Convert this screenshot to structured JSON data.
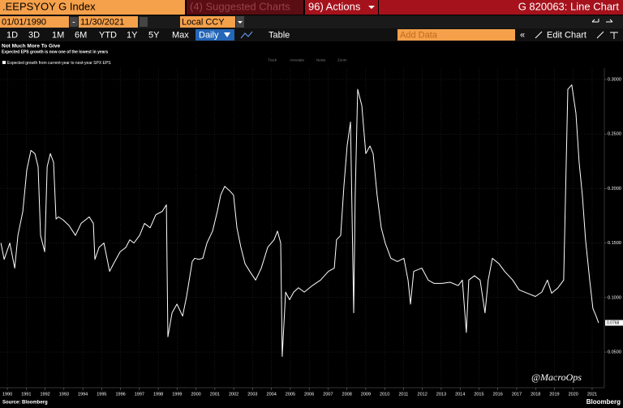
{
  "ui": {
    "ticker": ".EEPSYOY G Index",
    "suggested": "(4) Suggested Charts",
    "actions": "96) Actions",
    "chart_id": "G 820063: Line Chart",
    "start_date": "01/01/1990",
    "date_separator": "-",
    "end_date": "11/30/2021",
    "currency": "Local CCY",
    "periods": [
      "1D",
      "3D",
      "1M",
      "6M",
      "YTD",
      "1Y",
      "5Y",
      "Max"
    ],
    "frequency": "Daily",
    "table": "Table",
    "add_data": "Add Data",
    "edit_chart": "Edit Chart",
    "tools": [
      "Track",
      "Annotate",
      "News",
      "Zoom"
    ],
    "source": "Source: Bloomberg",
    "brand": "Bloomberg",
    "watermark": "@MacroOps"
  },
  "chart_data": {
    "type": "line",
    "title": "Not Much More To Give",
    "subtitle": "Expected EPS growth is now one of the lowest in years",
    "x": [
      1990.16,
      1990.33,
      1990.63,
      1990.89,
      1991.06,
      1991.32,
      1991.53,
      1991.75,
      1991.96,
      1992.13,
      1992.26,
      1992.48,
      1992.61,
      1992.78,
      1992.95,
      1993.08,
      1993.21,
      1993.47,
      1993.77,
      1994.11,
      1994.41,
      1994.84,
      1995.06,
      1995.14,
      1995.36,
      1995.62,
      1995.92,
      1996.13,
      1996.48,
      1996.78,
      1996.99,
      1997.21,
      1997.51,
      1997.77,
      1998.07,
      1998.37,
      1998.71,
      1998.93,
      1999.01,
      1999.23,
      1999.49,
      1999.79,
      2000.0,
      2000.3,
      2000.43,
      2000.65,
      2000.86,
      2001.08,
      2001.38,
      2001.63,
      2001.81,
      2002.02,
      2002.28,
      2002.49,
      2002.67,
      2002.88,
      2003.1,
      2003.35,
      2003.66,
      2003.96,
      2004.3,
      2004.64,
      2004.82,
      2004.99,
      2005.07,
      2005.25,
      2005.46,
      2005.68,
      2005.93,
      2006.24,
      2006.67,
      2007.1,
      2007.52,
      2007.83,
      2007.95,
      2008.17,
      2008.34,
      2008.51,
      2008.69,
      2008.86,
      2008.94,
      2009.07,
      2009.29,
      2009.5,
      2009.72,
      2009.89,
      2010.1,
      2010.32,
      2010.53,
      2010.83,
      2011.18,
      2011.52,
      2011.74,
      2011.87,
      2012.04,
      2012.47,
      2012.81,
      2013.11,
      2013.54,
      2013.97,
      2014.4,
      2014.62,
      2014.83,
      2014.96,
      2015.26,
      2015.56,
      2015.82,
      2015.99,
      2016.21,
      2016.56,
      2016.86,
      2017.29,
      2017.63,
      2018.06,
      2018.49,
      2018.83,
      2019.13,
      2019.35,
      2019.69,
      2019.99,
      2020.21,
      2020.42,
      2020.64,
      2020.81,
      2020.98,
      2021.15,
      2021.37,
      2021.54,
      2021.71,
      2021.84
    ],
    "series": [
      {
        "name": "Expected growth from current-year to next-year SPX EPS",
        "color": "#ffffff",
        "values": [
          0.15,
          0.135,
          0.15,
          0.127,
          0.157,
          0.179,
          0.217,
          0.235,
          0.232,
          0.22,
          0.157,
          0.142,
          0.22,
          0.232,
          0.224,
          0.172,
          0.174,
          0.171,
          0.166,
          0.157,
          0.168,
          0.174,
          0.168,
          0.135,
          0.146,
          0.15,
          0.124,
          0.131,
          0.142,
          0.146,
          0.153,
          0.15,
          0.157,
          0.168,
          0.164,
          0.176,
          0.179,
          0.185,
          0.064,
          0.086,
          0.094,
          0.083,
          0.101,
          0.133,
          0.136,
          0.135,
          0.136,
          0.15,
          0.161,
          0.179,
          0.194,
          0.202,
          0.198,
          0.194,
          0.164,
          0.146,
          0.131,
          0.124,
          0.116,
          0.127,
          0.146,
          0.153,
          0.161,
          0.15,
          0.046,
          0.105,
          0.098,
          0.105,
          0.109,
          0.105,
          0.111,
          0.116,
          0.124,
          0.127,
          0.153,
          0.157,
          0.202,
          0.239,
          0.261,
          0.086,
          0.194,
          0.291,
          0.276,
          0.232,
          0.239,
          0.232,
          0.194,
          0.164,
          0.15,
          0.136,
          0.133,
          0.136,
          0.116,
          0.094,
          0.124,
          0.127,
          0.116,
          0.113,
          0.113,
          0.114,
          0.111,
          0.116,
          0.068,
          0.116,
          0.12,
          0.116,
          0.086,
          0.116,
          0.136,
          0.131,
          0.124,
          0.116,
          0.107,
          0.104,
          0.101,
          0.105,
          0.116,
          0.104,
          0.109,
          0.116,
          0.291,
          0.295,
          0.269,
          0.224,
          0.194,
          0.153,
          0.116,
          0.09,
          0.083,
          0.0768
        ]
      }
    ],
    "last_value_label": "0.0768",
    "xlim": [
      1990.11,
      2022.06
    ],
    "ylim": [
      0.0173,
      0.3104
    ],
    "xticks": [
      {
        "value": 1990.5,
        "label": "1990"
      },
      {
        "value": 1991.5,
        "label": "1991"
      },
      {
        "value": 1992.5,
        "label": "1992"
      },
      {
        "value": 1993.5,
        "label": "1993"
      },
      {
        "value": 1994.5,
        "label": "1994"
      },
      {
        "value": 1995.5,
        "label": "1995"
      },
      {
        "value": 1996.5,
        "label": "1996"
      },
      {
        "value": 1997.5,
        "label": "1997"
      },
      {
        "value": 1998.5,
        "label": "1998"
      },
      {
        "value": 1999.5,
        "label": "1999"
      },
      {
        "value": 2000.5,
        "label": "2000"
      },
      {
        "value": 2001.5,
        "label": "2001"
      },
      {
        "value": 2002.5,
        "label": "2002"
      },
      {
        "value": 2003.5,
        "label": "2003"
      },
      {
        "value": 2004.5,
        "label": "2004"
      },
      {
        "value": 2005.5,
        "label": "2005"
      },
      {
        "value": 2006.5,
        "label": "2006"
      },
      {
        "value": 2007.5,
        "label": "2007"
      },
      {
        "value": 2008.5,
        "label": "2008"
      },
      {
        "value": 2009.5,
        "label": "2009"
      },
      {
        "value": 2010.5,
        "label": "2010"
      },
      {
        "value": 2011.5,
        "label": "2011"
      },
      {
        "value": 2012.5,
        "label": "2012"
      },
      {
        "value": 2013.5,
        "label": "2013"
      },
      {
        "value": 2014.5,
        "label": "2014"
      },
      {
        "value": 2015.5,
        "label": "2015"
      },
      {
        "value": 2016.5,
        "label": "2016"
      },
      {
        "value": 2017.5,
        "label": "2017"
      },
      {
        "value": 2018.5,
        "label": "2018"
      },
      {
        "value": 2019.5,
        "label": "2019"
      },
      {
        "value": 2020.5,
        "label": "2020"
      },
      {
        "value": 2021.5,
        "label": "2021"
      }
    ],
    "yticks": [
      {
        "value": 0.3,
        "label": "0.3000"
      },
      {
        "value": 0.25,
        "label": "0.2500"
      },
      {
        "value": 0.2,
        "label": "0.2000"
      },
      {
        "value": 0.15,
        "label": "0.1500"
      },
      {
        "value": 0.1,
        "label": "0.1000"
      },
      {
        "value": 0.05,
        "label": "0.0500"
      }
    ],
    "grid": true
  }
}
